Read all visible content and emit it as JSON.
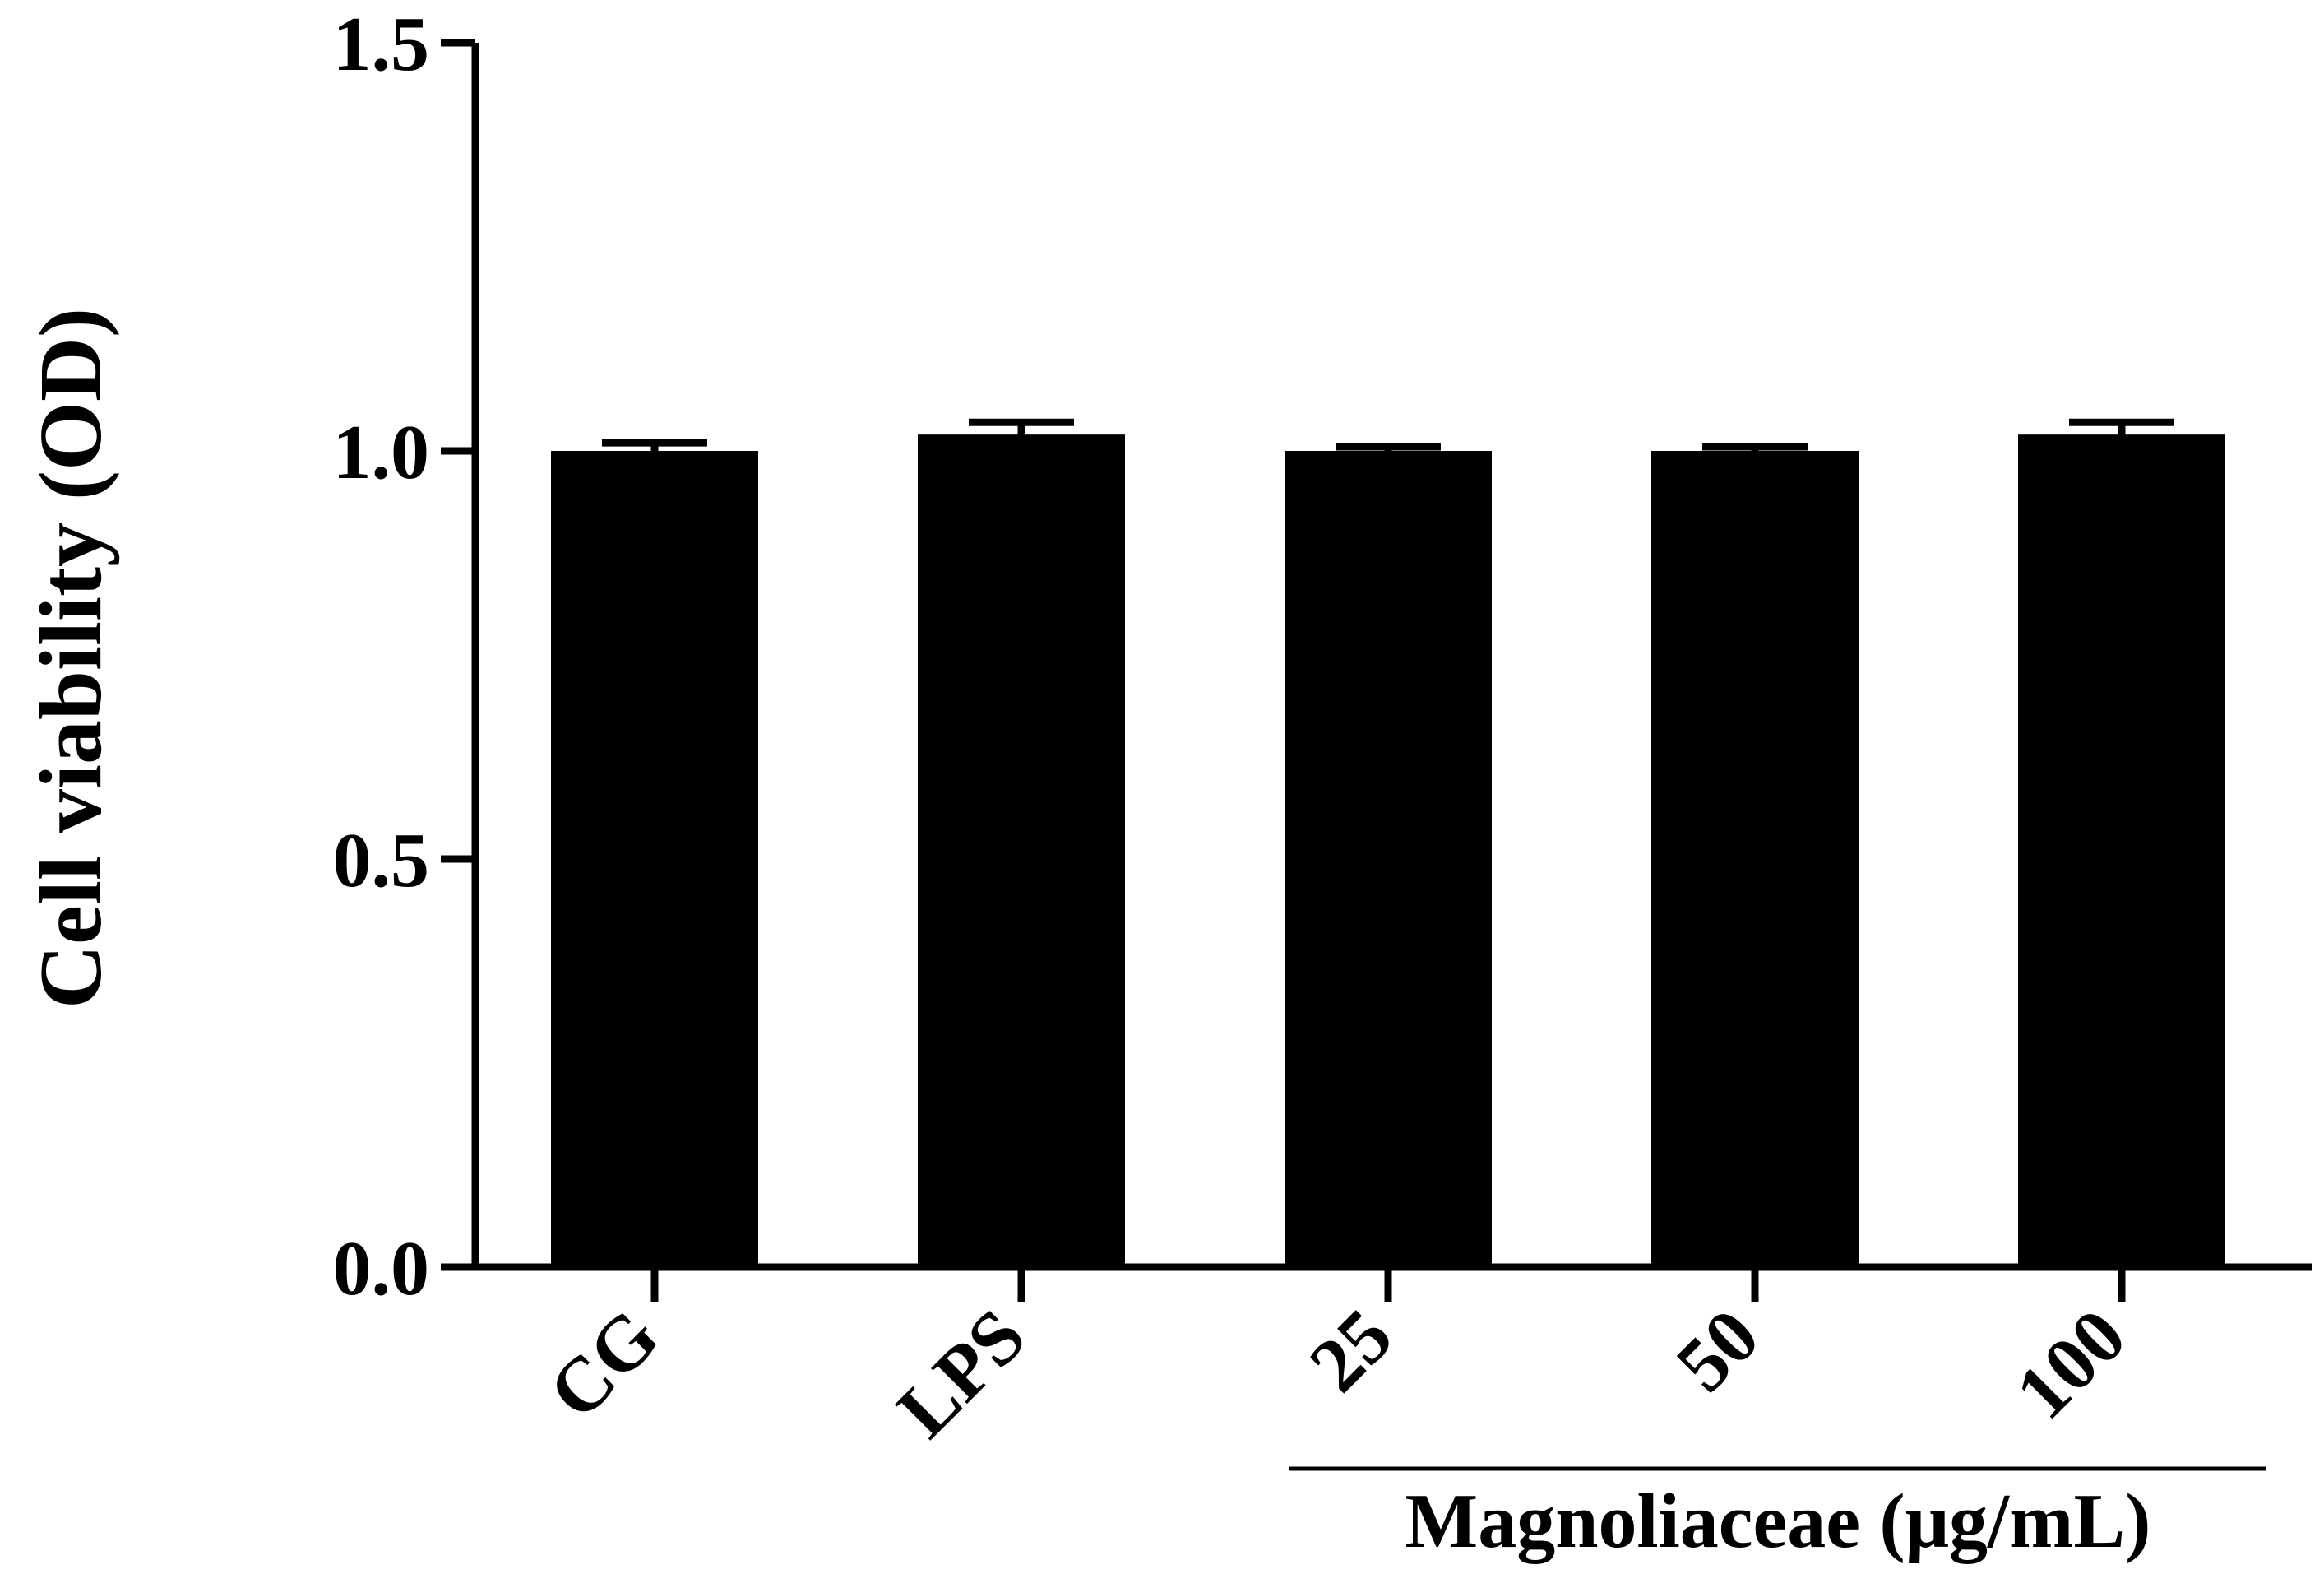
{
  "chart_data": {
    "type": "bar",
    "categories": [
      "CG",
      "LPS",
      "25",
      "50",
      "100"
    ],
    "values": [
      1.0,
      1.02,
      1.0,
      1.0,
      1.02
    ],
    "errors": [
      0.01,
      0.015,
      0.005,
      0.005,
      0.015
    ],
    "ylabel": "Cell viability (OD)",
    "xlabel": "",
    "ylim": [
      0,
      1.5
    ],
    "yticks": [
      0.0,
      0.5,
      1.0,
      1.5
    ],
    "ytick_labels": [
      "0.0",
      "0.5",
      "1.0",
      "1.5"
    ],
    "group_label": "Magnoliaceae (μg/mL)",
    "group_categories": [
      "25",
      "50",
      "100"
    ],
    "bar_color": "#000000",
    "grid": false
  }
}
